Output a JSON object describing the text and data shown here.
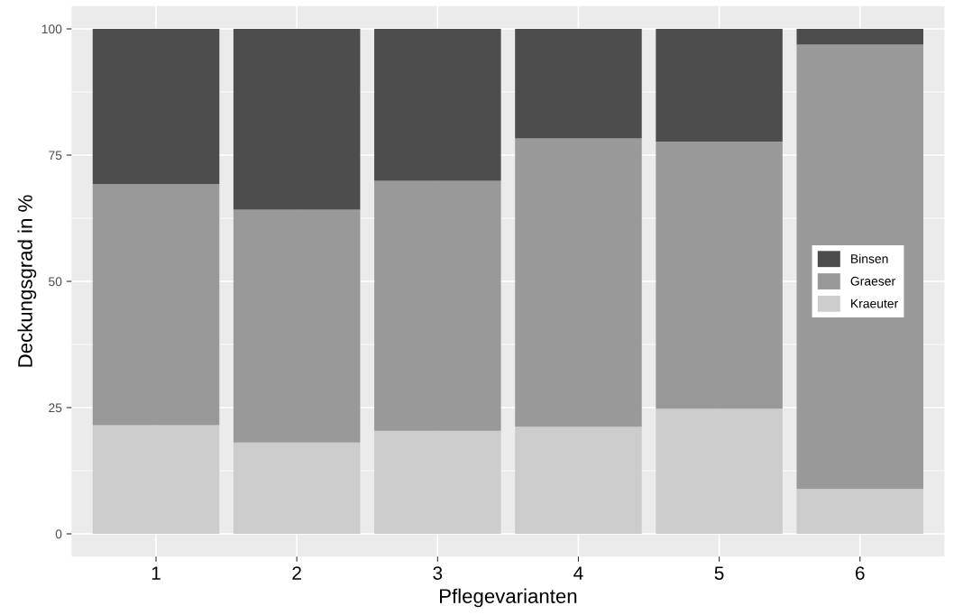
{
  "chart_data": {
    "type": "bar",
    "stacked": true,
    "xlabel": "Pflegevarianten",
    "ylabel": "Deckungsgrad in %",
    "categories": [
      "1",
      "2",
      "3",
      "4",
      "5",
      "6"
    ],
    "series": [
      {
        "name": "Kraeuter",
        "color": "#cccccc",
        "values": [
          21.5,
          18.1,
          20.4,
          21.2,
          24.8,
          8.9
        ]
      },
      {
        "name": "Graeser",
        "color": "#999999",
        "values": [
          47.8,
          46.1,
          49.5,
          57.1,
          52.9,
          88.0
        ]
      },
      {
        "name": "Binsen",
        "color": "#4d4d4d",
        "values": [
          30.7,
          35.8,
          30.1,
          21.7,
          22.3,
          3.1
        ]
      }
    ],
    "ylim": [
      -4.5,
      104.5
    ],
    "yticks": [
      0,
      25,
      50,
      75,
      100
    ],
    "grid": true,
    "legend": "right"
  }
}
